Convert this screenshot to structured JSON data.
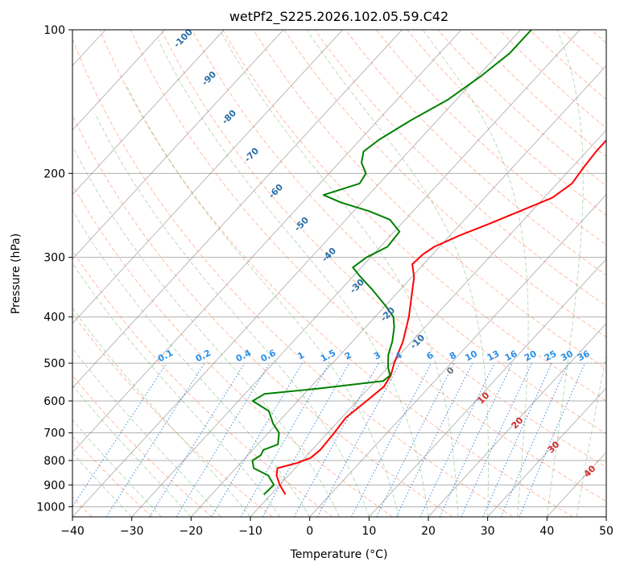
{
  "chart_data": {
    "type": "line",
    "title": "wetPf2_S225.2026.102.05.59.C42",
    "xlabel": "Temperature (°C)",
    "ylabel": "Pressure (hPa)",
    "xlim": [
      -40,
      50
    ],
    "ylim": [
      1050,
      100
    ],
    "y_scale": "log",
    "x_ticks": [
      -40,
      -30,
      -20,
      -10,
      0,
      10,
      20,
      30,
      40,
      50
    ],
    "x_tick_labels": [
      "−40",
      "−30",
      "−20",
      "−10",
      "0",
      "10",
      "20",
      "30",
      "40",
      "50"
    ],
    "y_ticks": [
      100,
      200,
      300,
      400,
      500,
      600,
      700,
      800,
      900,
      1000
    ],
    "y_tick_labels": [
      "100",
      "200",
      "300",
      "400",
      "500",
      "600",
      "700",
      "800",
      "900",
      "1000"
    ],
    "grid": true,
    "colors": {
      "temperature": "#ff0000",
      "dewpoint": "#008000",
      "dry_adiabat": "#ff6b3d",
      "moist_adiabat": "#3a9a3a",
      "mixing_ratio": "#1f77d4",
      "isotherm": "#808080"
    },
    "series": [
      {
        "role": "temperature",
        "points": [
          [
            942,
            -7.6
          ],
          [
            900,
            -10.0
          ],
          [
            860,
            -12.0
          ],
          [
            830,
            -13.0
          ],
          [
            810,
            -10.5
          ],
          [
            790,
            -9.0
          ],
          [
            760,
            -8.6
          ],
          [
            700,
            -8.9
          ],
          [
            650,
            -9.3
          ],
          [
            600,
            -8.4
          ],
          [
            560,
            -7.7
          ],
          [
            530,
            -8.3
          ],
          [
            500,
            -9.6
          ],
          [
            450,
            -11.5
          ],
          [
            400,
            -14.3
          ],
          [
            360,
            -17.2
          ],
          [
            330,
            -19.6
          ],
          [
            310,
            -21.9
          ],
          [
            295,
            -21.6
          ],
          [
            285,
            -20.9
          ],
          [
            270,
            -18.4
          ],
          [
            255,
            -15.2
          ],
          [
            240,
            -12.0
          ],
          [
            225,
            -8.6
          ],
          [
            210,
            -7.5
          ],
          [
            195,
            -8.0
          ],
          [
            180,
            -8.4
          ],
          [
            165,
            -8.4
          ],
          [
            150,
            -7.9
          ],
          [
            135,
            -7.5
          ],
          [
            125,
            -7.7
          ],
          [
            115,
            -7.9
          ],
          [
            108,
            -7.0
          ],
          [
            100,
            -5.9
          ]
        ]
      },
      {
        "role": "dewpoint",
        "points": [
          [
            942,
            -11.2
          ],
          [
            900,
            -11.0
          ],
          [
            860,
            -13.4
          ],
          [
            830,
            -17.0
          ],
          [
            800,
            -18.4
          ],
          [
            780,
            -17.8
          ],
          [
            760,
            -18.2
          ],
          [
            740,
            -16.6
          ],
          [
            700,
            -18.2
          ],
          [
            670,
            -20.6
          ],
          [
            630,
            -23.3
          ],
          [
            600,
            -27.6
          ],
          [
            580,
            -26.7
          ],
          [
            565,
            -18.3
          ],
          [
            545,
            -8.7
          ],
          [
            530,
            -8.4
          ],
          [
            510,
            -10.0
          ],
          [
            480,
            -11.9
          ],
          [
            450,
            -13.3
          ],
          [
            420,
            -15.2
          ],
          [
            400,
            -16.9
          ],
          [
            380,
            -19.8
          ],
          [
            350,
            -24.8
          ],
          [
            330,
            -28.6
          ],
          [
            315,
            -31.4
          ],
          [
            300,
            -30.7
          ],
          [
            285,
            -28.8
          ],
          [
            265,
            -29.1
          ],
          [
            250,
            -32.6
          ],
          [
            240,
            -37.4
          ],
          [
            230,
            -43.6
          ],
          [
            222,
            -47.6
          ],
          [
            210,
            -43.3
          ],
          [
            200,
            -43.8
          ],
          [
            190,
            -46.2
          ],
          [
            180,
            -47.6
          ],
          [
            170,
            -46.8
          ],
          [
            155,
            -44.5
          ],
          [
            140,
            -41.4
          ],
          [
            125,
            -39.5
          ],
          [
            112,
            -38.2
          ],
          [
            100,
            -38.2
          ]
        ]
      }
    ],
    "mixing_ratio_labels": [
      "0.1",
      "0.2",
      "0.4",
      "0.6",
      "1",
      "1.5",
      "2",
      "3",
      "4",
      "6",
      "8",
      "10",
      "13",
      "16",
      "20",
      "25",
      "30",
      "36"
    ],
    "dry_adiabat_labels": [
      "-100",
      "-90",
      "-80",
      "-70",
      "-60",
      "-50",
      "-40",
      "-30",
      "-20",
      "-10",
      "0"
    ],
    "moist_adiabat_labels": [
      "10",
      "20",
      "30",
      "40"
    ]
  }
}
